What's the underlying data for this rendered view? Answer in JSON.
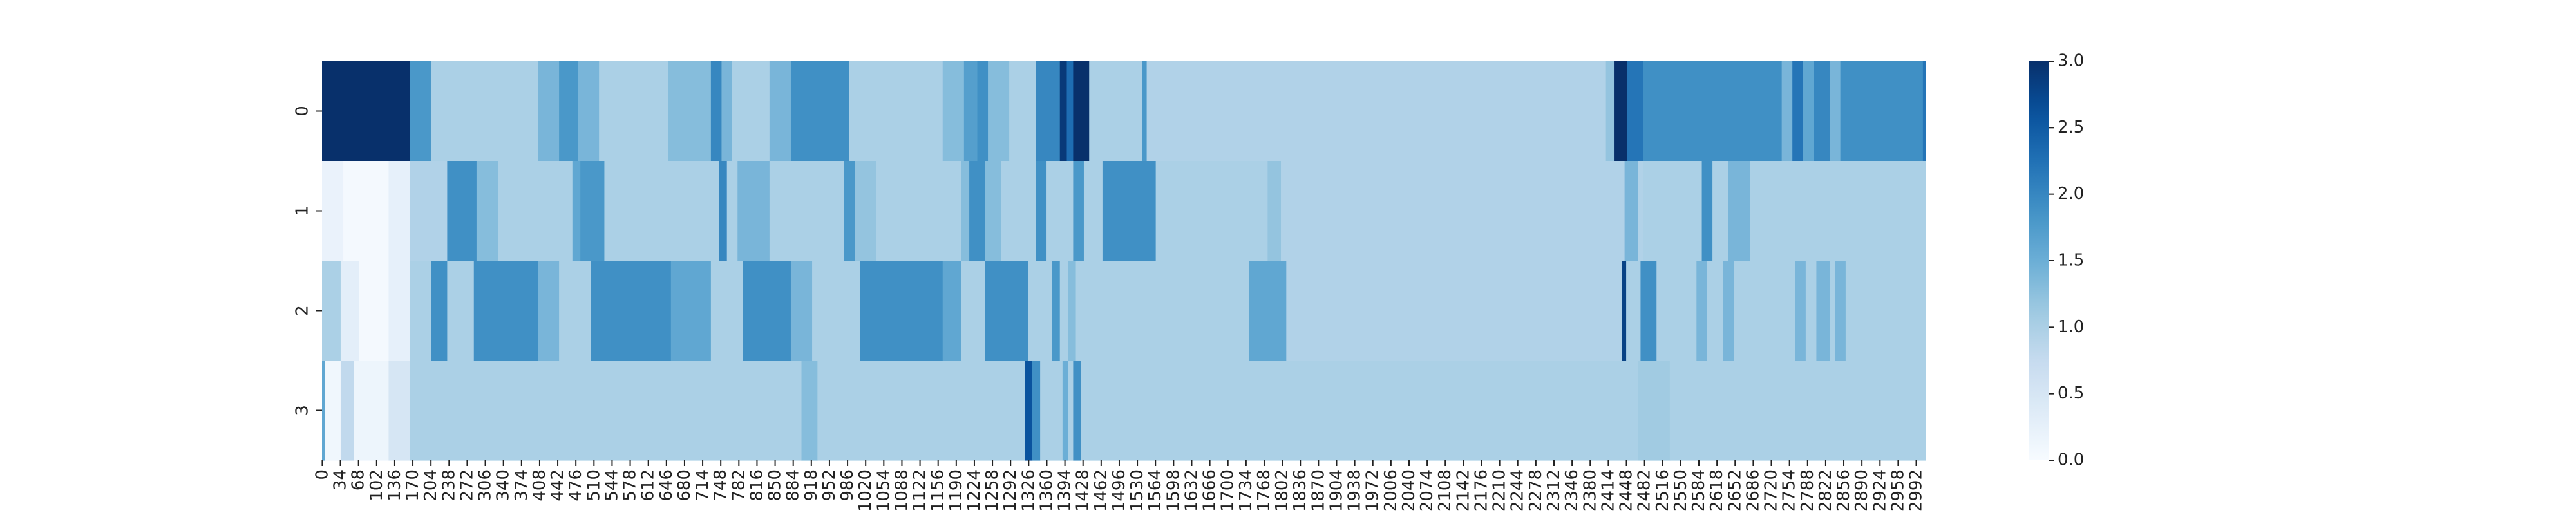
{
  "chart_data": {
    "type": "heatmap",
    "title": "",
    "xlabel": "",
    "ylabel": "",
    "x_range": [
      0,
      3010
    ],
    "y_categories": [
      "0",
      "1",
      "2",
      "3"
    ],
    "x_tick_labels": [
      "0",
      "34",
      "68",
      "102",
      "136",
      "170",
      "204",
      "238",
      "272",
      "306",
      "340",
      "374",
      "408",
      "442",
      "476",
      "510",
      "544",
      "578",
      "612",
      "646",
      "680",
      "714",
      "748",
      "782",
      "816",
      "850",
      "884",
      "918",
      "952",
      "986",
      "1020",
      "1054",
      "1088",
      "1122",
      "1156",
      "1190",
      "1224",
      "1258",
      "1292",
      "1326",
      "1360",
      "1394",
      "1428",
      "1462",
      "1496",
      "1530",
      "1564",
      "1598",
      "1632",
      "1666",
      "1700",
      "1734",
      "1768",
      "1802",
      "1836",
      "1870",
      "1904",
      "1938",
      "1972",
      "2006",
      "2040",
      "2074",
      "2108",
      "2142",
      "2176",
      "2210",
      "2244",
      "2278",
      "2312",
      "2346",
      "2380",
      "2414",
      "2448",
      "2482",
      "2516",
      "2550",
      "2584",
      "2618",
      "2652",
      "2686",
      "2720",
      "2754",
      "2788",
      "2822",
      "2856",
      "2890",
      "2924",
      "2958",
      "2992"
    ],
    "colorbar": {
      "colormap": "Blues",
      "min": 0.0,
      "max": 3.0,
      "tick_labels": [
        "0.0",
        "0.5",
        "1.0",
        "1.5",
        "2.0",
        "2.5",
        "3.0"
      ]
    },
    "rows": [
      {
        "label": "0",
        "segments": [
          [
            0,
            165,
            3.0
          ],
          [
            165,
            205,
            1.8
          ],
          [
            205,
            405,
            1.0
          ],
          [
            405,
            445,
            1.4
          ],
          [
            445,
            480,
            1.8
          ],
          [
            480,
            520,
            1.4
          ],
          [
            520,
            650,
            1.0
          ],
          [
            650,
            730,
            1.3
          ],
          [
            730,
            750,
            2.0
          ],
          [
            750,
            770,
            1.4
          ],
          [
            770,
            840,
            1.0
          ],
          [
            840,
            880,
            1.4
          ],
          [
            880,
            990,
            1.9
          ],
          [
            990,
            1165,
            1.0
          ],
          [
            1165,
            1205,
            1.3
          ],
          [
            1205,
            1230,
            1.7
          ],
          [
            1230,
            1250,
            1.9
          ],
          [
            1250,
            1290,
            1.3
          ],
          [
            1290,
            1340,
            1.0
          ],
          [
            1340,
            1385,
            2.0
          ],
          [
            1385,
            1398,
            2.9
          ],
          [
            1398,
            1410,
            2.3
          ],
          [
            1410,
            1440,
            3.0
          ],
          [
            1440,
            1540,
            1.0
          ],
          [
            1540,
            1548,
            1.8
          ],
          [
            1548,
            2410,
            0.95
          ],
          [
            2410,
            2425,
            1.2
          ],
          [
            2425,
            2450,
            3.0
          ],
          [
            2450,
            2480,
            2.2
          ],
          [
            2480,
            2630,
            1.9
          ],
          [
            2630,
            2740,
            1.9
          ],
          [
            2740,
            2760,
            1.4
          ],
          [
            2760,
            2780,
            2.2
          ],
          [
            2780,
            2800,
            1.6
          ],
          [
            2800,
            2830,
            2.0
          ],
          [
            2830,
            2850,
            1.4
          ],
          [
            2850,
            3005,
            1.9
          ],
          [
            3005,
            3010,
            2.2
          ]
        ]
      },
      {
        "label": "1",
        "segments": [
          [
            0,
            40,
            0.2
          ],
          [
            40,
            125,
            0.05
          ],
          [
            125,
            165,
            0.25
          ],
          [
            165,
            235,
            0.95
          ],
          [
            235,
            290,
            1.9
          ],
          [
            290,
            330,
            1.3
          ],
          [
            330,
            470,
            1.0
          ],
          [
            470,
            485,
            1.6
          ],
          [
            485,
            530,
            1.8
          ],
          [
            530,
            745,
            1.0
          ],
          [
            745,
            760,
            2.0
          ],
          [
            760,
            780,
            1.0
          ],
          [
            780,
            840,
            1.4
          ],
          [
            840,
            980,
            1.0
          ],
          [
            980,
            1000,
            1.8
          ],
          [
            1000,
            1040,
            1.2
          ],
          [
            1040,
            1200,
            1.0
          ],
          [
            1200,
            1215,
            1.3
          ],
          [
            1215,
            1245,
            1.9
          ],
          [
            1245,
            1275,
            1.3
          ],
          [
            1275,
            1340,
            1.0
          ],
          [
            1340,
            1360,
            1.9
          ],
          [
            1360,
            1410,
            1.0
          ],
          [
            1410,
            1430,
            1.8
          ],
          [
            1430,
            1465,
            1.0
          ],
          [
            1465,
            1565,
            1.9
          ],
          [
            1565,
            1775,
            1.0
          ],
          [
            1775,
            1800,
            1.2
          ],
          [
            1800,
            2445,
            0.95
          ],
          [
            2445,
            2470,
            1.4
          ],
          [
            2470,
            2480,
            0.95
          ],
          [
            2480,
            2590,
            1.0
          ],
          [
            2590,
            2610,
            1.9
          ],
          [
            2610,
            2640,
            1.0
          ],
          [
            2640,
            2680,
            1.4
          ],
          [
            2680,
            3010,
            1.0
          ]
        ]
      },
      {
        "label": "2",
        "segments": [
          [
            0,
            35,
            1.0
          ],
          [
            35,
            70,
            0.3
          ],
          [
            70,
            125,
            0.05
          ],
          [
            125,
            165,
            0.25
          ],
          [
            165,
            205,
            1.0
          ],
          [
            205,
            235,
            1.9
          ],
          [
            235,
            285,
            1.0
          ],
          [
            285,
            405,
            1.9
          ],
          [
            405,
            445,
            1.4
          ],
          [
            445,
            505,
            1.0
          ],
          [
            505,
            655,
            1.9
          ],
          [
            655,
            730,
            1.6
          ],
          [
            730,
            790,
            1.0
          ],
          [
            790,
            880,
            1.9
          ],
          [
            880,
            920,
            1.4
          ],
          [
            920,
            1010,
            1.0
          ],
          [
            1010,
            1165,
            1.9
          ],
          [
            1165,
            1200,
            1.6
          ],
          [
            1200,
            1245,
            1.0
          ],
          [
            1245,
            1325,
            1.9
          ],
          [
            1325,
            1370,
            1.0
          ],
          [
            1370,
            1385,
            1.8
          ],
          [
            1385,
            1400,
            1.0
          ],
          [
            1400,
            1415,
            1.3
          ],
          [
            1415,
            1740,
            1.0
          ],
          [
            1740,
            1810,
            1.6
          ],
          [
            1810,
            2440,
            0.95
          ],
          [
            2440,
            2448,
            2.8
          ],
          [
            2448,
            2475,
            1.0
          ],
          [
            2475,
            2505,
            1.9
          ],
          [
            2505,
            2580,
            1.0
          ],
          [
            2580,
            2600,
            1.4
          ],
          [
            2600,
            2630,
            1.0
          ],
          [
            2630,
            2650,
            1.4
          ],
          [
            2650,
            2765,
            1.0
          ],
          [
            2765,
            2785,
            1.4
          ],
          [
            2785,
            2805,
            1.0
          ],
          [
            2805,
            2830,
            1.4
          ],
          [
            2830,
            2840,
            1.0
          ],
          [
            2840,
            2860,
            1.4
          ],
          [
            2860,
            3010,
            1.0
          ]
        ]
      },
      {
        "label": "3",
        "segments": [
          [
            0,
            5,
            1.6
          ],
          [
            5,
            35,
            0.1
          ],
          [
            35,
            60,
            0.8
          ],
          [
            60,
            125,
            0.15
          ],
          [
            125,
            165,
            0.5
          ],
          [
            165,
            205,
            1.0
          ],
          [
            205,
            900,
            1.0
          ],
          [
            900,
            930,
            1.3
          ],
          [
            930,
            1320,
            1.0
          ],
          [
            1320,
            1333,
            2.6
          ],
          [
            1333,
            1348,
            1.9
          ],
          [
            1348,
            1390,
            1.0
          ],
          [
            1390,
            1400,
            1.5
          ],
          [
            1400,
            1410,
            1.0
          ],
          [
            1410,
            1425,
            1.9
          ],
          [
            1425,
            1440,
            1.0
          ],
          [
            1440,
            2470,
            1.0
          ],
          [
            2470,
            2530,
            1.1
          ],
          [
            2530,
            3010,
            1.0
          ]
        ]
      }
    ]
  }
}
